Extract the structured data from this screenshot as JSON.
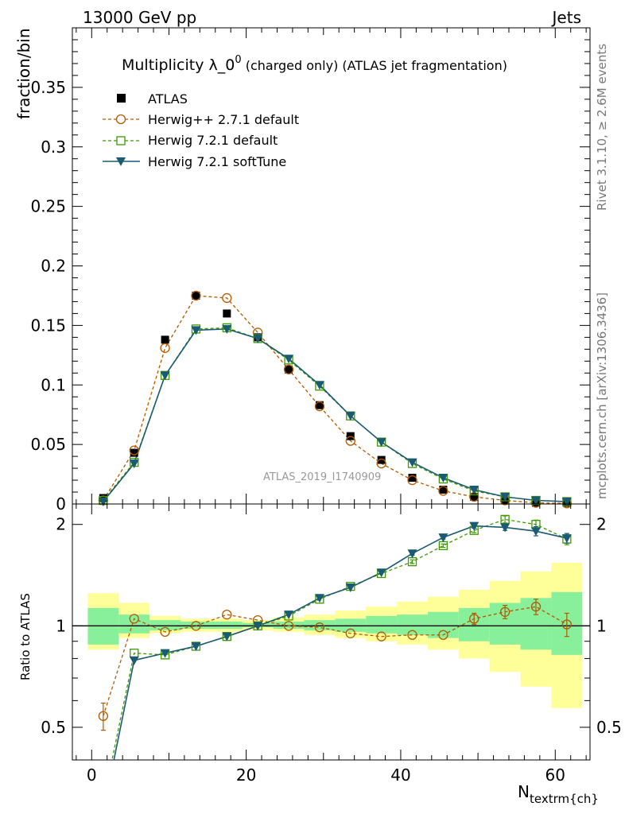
{
  "header": {
    "left": "13000 GeV pp",
    "right": "Jets"
  },
  "side_labels": {
    "rivet": "Rivet 3.1.10, ≥ 2.6M events",
    "mcplots": "mcplots.cern.ch [arXiv:1306.3436]"
  },
  "watermark": "ATLAS_2019_I1740909",
  "colors": {
    "atlas": "#000000",
    "herwigpp": "#b35900",
    "herwig721": "#3c9900",
    "softtune": "#1a5a73",
    "band_inner": "#88f09a",
    "band_outer": "#ffff99"
  },
  "chart_data": [
    {
      "type": "scatter",
      "panel": "main",
      "title_main": "Multiplicity λ_0",
      "title_sup": "0",
      "title_rest": " (charged only) (ATLAS jet fragmentation)",
      "ylabel": "fraction/bin",
      "xlim": [
        -2.5,
        64.5
      ],
      "ylim": [
        0,
        0.4
      ],
      "yticks": [
        0,
        0.05,
        0.1,
        0.15,
        0.2,
        0.25,
        0.3,
        0.35
      ],
      "ytick_labels": [
        "0",
        "0.05",
        "0.1",
        "0.15",
        "0.2",
        "0.25",
        "0.3",
        "0.35"
      ],
      "legend_position": "top-left",
      "x": [
        1.5,
        5.5,
        9.5,
        13.5,
        17.5,
        21.5,
        25.5,
        29.5,
        33.5,
        37.5,
        41.5,
        45.5,
        49.5,
        53.5,
        57.5,
        61.5
      ],
      "series": [
        {
          "name": "ATLAS",
          "style": "square-filled",
          "values": [
            0.005,
            0.043,
            0.138,
            0.175,
            0.16,
            0.14,
            0.113,
            0.083,
            0.057,
            0.037,
            0.022,
            0.012,
            0.006,
            0.003,
            0.001,
            0.001
          ]
        },
        {
          "name": "Herwig++ 2.7.1 default",
          "style": "circle-open-dashed",
          "values": [
            0.003,
            0.045,
            0.131,
            0.175,
            0.173,
            0.144,
            0.113,
            0.082,
            0.053,
            0.034,
            0.02,
            0.011,
            0.006,
            0.003,
            0.001,
            0.0005
          ]
        },
        {
          "name": "Herwig 7.2.1 default",
          "style": "square-open-dashed",
          "values": [
            0.003,
            0.035,
            0.108,
            0.147,
            0.148,
            0.139,
            0.121,
            0.099,
            0.074,
            0.052,
            0.034,
            0.021,
            0.011,
            0.006,
            0.003,
            0.002
          ]
        },
        {
          "name": "Herwig 7.2.1 softTune",
          "style": "triangle-down-solid",
          "values": [
            0.002,
            0.034,
            0.108,
            0.146,
            0.147,
            0.139,
            0.122,
            0.1,
            0.074,
            0.052,
            0.035,
            0.022,
            0.012,
            0.006,
            0.003,
            0.002
          ]
        }
      ]
    },
    {
      "type": "line",
      "panel": "ratio",
      "ylabel": "Ratio to ATLAS",
      "xlabel_main": "N",
      "xlabel_sub": "textrm{ch}",
      "xlim": [
        -2.5,
        64.5
      ],
      "ylim": [
        0.4,
        2.3
      ],
      "yticks": [
        0.5,
        1,
        2
      ],
      "ytick_labels": [
        "0.5",
        "1",
        "2"
      ],
      "xticks": [
        0,
        20,
        40,
        60
      ],
      "xtick_labels": [
        "0",
        "20",
        "40",
        "60"
      ],
      "bin_edges": [
        -0.5,
        3.5,
        7.5,
        11.5,
        15.5,
        19.5,
        23.5,
        27.5,
        31.5,
        35.5,
        39.5,
        43.5,
        47.5,
        51.5,
        55.5,
        59.5,
        63.5
      ],
      "band_inner": [
        [
          0.88,
          1.13
        ],
        [
          0.95,
          1.08
        ],
        [
          0.97,
          1.04
        ],
        [
          0.98,
          1.03
        ],
        [
          0.98,
          1.03
        ],
        [
          0.99,
          1.02
        ],
        [
          0.98,
          1.03
        ],
        [
          0.97,
          1.04
        ],
        [
          0.96,
          1.05
        ],
        [
          0.95,
          1.07
        ],
        [
          0.94,
          1.08
        ],
        [
          0.92,
          1.1
        ],
        [
          0.9,
          1.13
        ],
        [
          0.88,
          1.17
        ],
        [
          0.85,
          1.21
        ],
        [
          0.82,
          1.26
        ]
      ],
      "band_outer": [
        [
          0.85,
          1.25
        ],
        [
          0.92,
          1.17
        ],
        [
          0.95,
          1.07
        ],
        [
          0.96,
          1.05
        ],
        [
          0.96,
          1.05
        ],
        [
          0.97,
          1.04
        ],
        [
          0.96,
          1.06
        ],
        [
          0.94,
          1.08
        ],
        [
          0.92,
          1.11
        ],
        [
          0.9,
          1.14
        ],
        [
          0.88,
          1.18
        ],
        [
          0.85,
          1.22
        ],
        [
          0.8,
          1.28
        ],
        [
          0.73,
          1.36
        ],
        [
          0.66,
          1.45
        ],
        [
          0.57,
          1.54
        ]
      ],
      "x": [
        1.5,
        5.5,
        9.5,
        13.5,
        17.5,
        21.5,
        25.5,
        29.5,
        33.5,
        37.5,
        41.5,
        45.5,
        49.5,
        53.5,
        57.5,
        61.5
      ],
      "series": [
        {
          "name": "Herwig++ 2.7.1 default",
          "values": [
            0.54,
            1.05,
            0.96,
            1.0,
            1.08,
            1.04,
            1.0,
            0.99,
            0.95,
            0.93,
            0.94,
            0.94,
            1.05,
            1.1,
            1.14,
            1.01
          ],
          "errors": [
            0.05,
            0.01,
            0.01,
            0.01,
            0.01,
            0.01,
            0.01,
            0.01,
            0.01,
            0.01,
            0.01,
            0.01,
            0.04,
            0.05,
            0.06,
            0.08
          ]
        },
        {
          "name": "Herwig 7.2.1 default",
          "values": [
            0.3,
            0.83,
            0.82,
            0.87,
            0.93,
            1.0,
            1.07,
            1.2,
            1.31,
            1.43,
            1.55,
            1.73,
            1.92,
            2.07,
            2.0,
            1.81
          ],
          "errors": [
            0.02,
            0.01,
            0.01,
            0.01,
            0.01,
            0.01,
            0.01,
            0.01,
            0.01,
            0.01,
            0.02,
            0.02,
            0.03,
            0.05,
            0.06,
            0.07
          ]
        },
        {
          "name": "Herwig 7.2.1 softTune",
          "values": [
            0.28,
            0.79,
            0.83,
            0.87,
            0.93,
            1.0,
            1.08,
            1.21,
            1.3,
            1.44,
            1.64,
            1.83,
            1.98,
            1.96,
            1.91,
            1.82
          ],
          "errors": [
            0.02,
            0.01,
            0.01,
            0.01,
            0.01,
            0.01,
            0.01,
            0.01,
            0.01,
            0.01,
            0.02,
            0.02,
            0.03,
            0.04,
            0.06,
            0.06
          ]
        }
      ]
    }
  ]
}
